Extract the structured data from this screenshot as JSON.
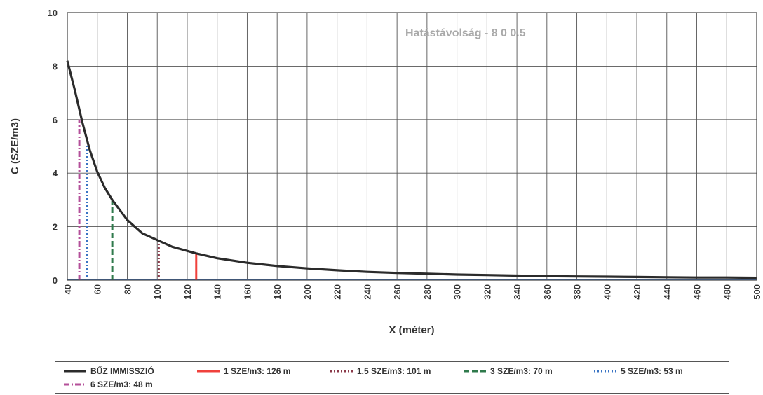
{
  "chart_data": {
    "type": "line",
    "title": "",
    "annotation": "Hatástávolság - 8 0 0.5",
    "xlabel": "X (méter)",
    "ylabel": "C (SZE/m3)",
    "xlim": [
      40,
      500
    ],
    "ylim": [
      0,
      10
    ],
    "x_ticks": [
      40,
      60,
      80,
      100,
      120,
      140,
      160,
      180,
      200,
      220,
      240,
      260,
      280,
      300,
      320,
      340,
      360,
      380,
      400,
      420,
      440,
      460,
      480,
      500
    ],
    "y_ticks": [
      0,
      2,
      4,
      6,
      8,
      10
    ],
    "grid": true,
    "legend_position": "bottom",
    "series": [
      {
        "name": "BŰZ IMMISSZIÓ",
        "style": "solid",
        "color": "#2b2b2b",
        "x": [
          40,
          45,
          50,
          55,
          60,
          65,
          70,
          80,
          90,
          100,
          110,
          126,
          140,
          160,
          180,
          200,
          220,
          240,
          260,
          280,
          300,
          320,
          340,
          360,
          380,
          400,
          420,
          440,
          460,
          480,
          500
        ],
        "y": [
          8.2,
          7.1,
          5.9,
          4.85,
          4.05,
          3.45,
          3.0,
          2.25,
          1.75,
          1.5,
          1.25,
          1.0,
          0.82,
          0.65,
          0.53,
          0.44,
          0.37,
          0.31,
          0.27,
          0.24,
          0.21,
          0.19,
          0.17,
          0.15,
          0.14,
          0.13,
          0.12,
          0.11,
          0.1,
          0.1,
          0.09
        ]
      },
      {
        "name": "1 SZE/m3: 126 m",
        "style": "solid",
        "color": "#f0413c",
        "x": [
          126,
          126
        ],
        "y": [
          0,
          1.0
        ]
      },
      {
        "name": "1.5 SZE/m3: 101 m",
        "style": "dotted",
        "color": "#8b3a4a",
        "x": [
          101,
          101
        ],
        "y": [
          0,
          1.5
        ]
      },
      {
        "name": "3 SZE/m3: 70 m",
        "style": "dashed",
        "color": "#2f7a4c",
        "x": [
          70,
          70
        ],
        "y": [
          0,
          3.0
        ]
      },
      {
        "name": "5 SZE/m3: 53 m",
        "style": "dotted",
        "color": "#3a74c4",
        "x": [
          53,
          53
        ],
        "y": [
          0,
          5.0
        ]
      },
      {
        "name": "6 SZE/m3: 48 m",
        "style": "dashdot",
        "color": "#b4509a",
        "x": [
          48,
          48
        ],
        "y": [
          0,
          6.0
        ]
      }
    ]
  }
}
